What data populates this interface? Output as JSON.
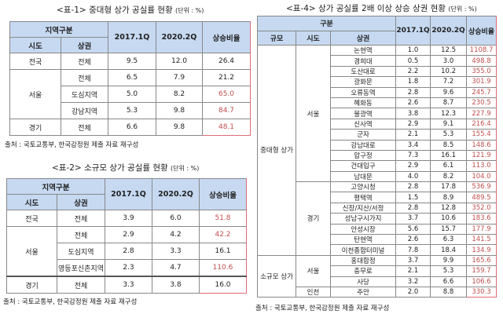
{
  "table1": {
    "title": "<표-1> 중대형 상가 공실률 현황",
    "unit": "(단위 : %)",
    "headers": {
      "group": "지역구분",
      "sido": "시도",
      "area": "상권",
      "c1": "2017.1Q",
      "c2": "2020.2Q",
      "c3": "상승비율"
    },
    "rows": [
      {
        "sido": "전국",
        "area": "전체",
        "v1": "9.5",
        "v2": "12.0",
        "rate": "26.4",
        "highlight": false
      },
      {
        "sido": "서울",
        "area": "전체",
        "v1": "6.5",
        "v2": "7.9",
        "rate": "21.2",
        "highlight": false
      },
      {
        "sido": "서울",
        "area": "도심지역",
        "v1": "5.0",
        "v2": "8.2",
        "rate": "65.0",
        "highlight": true
      },
      {
        "sido": "서울",
        "area": "강남지역",
        "v1": "5.3",
        "v2": "9.8",
        "rate": "84.7",
        "highlight": true
      },
      {
        "sido": "경기",
        "area": "전체",
        "v1": "6.6",
        "v2": "9.8",
        "rate": "48.1",
        "highlight": true
      }
    ],
    "source": "출처 : 국토교통부, 한국감정원 제출 자료 재구성"
  },
  "table2": {
    "title": "<표-2> 소규모 상가 공실률 현황",
    "unit": "(단위 : %)",
    "headers": {
      "group": "지역구분",
      "sido": "시도",
      "area": "상권",
      "c1": "2017.1Q",
      "c2": "2020.2Q",
      "c3": "상승비율"
    },
    "rows": [
      {
        "sido": "전국",
        "area": "전체",
        "v1": "3.9",
        "v2": "6.0",
        "rate": "51.8",
        "highlight": true
      },
      {
        "sido": "서울",
        "area": "전체",
        "v1": "2.9",
        "v2": "4.2",
        "rate": "42.2",
        "highlight": true
      },
      {
        "sido": "서울",
        "area": "도심지역",
        "v1": "2.8",
        "v2": "3.3",
        "rate": "16.1",
        "highlight": false
      },
      {
        "sido": "서울",
        "area": "영등포신촌지역",
        "v1": "2.3",
        "v2": "4.7",
        "rate": "110.6",
        "highlight": true
      },
      {
        "sido": "경기",
        "area": "전체",
        "v1": "3.3",
        "v2": "3.8",
        "rate": "16.0",
        "highlight": false
      }
    ],
    "source": "출처 : 국토교통부, 한국감정원 제출 자료 재구성"
  },
  "table4": {
    "title": "<표-4> 상가 공실률 2배 이상 상승 상권 현황",
    "unit": "(단위 : %)",
    "headers": {
      "group": "구분",
      "scale": "규모",
      "sido": "시도",
      "area": "상권",
      "c1": "2017.1Q",
      "c2": "2020.2Q",
      "c3": "상승비율"
    },
    "rows": [
      {
        "scale": "중대형 상가",
        "sido": "서울",
        "area": "논현역",
        "v1": "1.0",
        "v2": "12.5",
        "rate": "1108.7"
      },
      {
        "scale": "중대형 상가",
        "sido": "서울",
        "area": "경희대",
        "v1": "0.5",
        "v2": "3.0",
        "rate": "498.8"
      },
      {
        "scale": "중대형 상가",
        "sido": "서울",
        "area": "도산대로",
        "v1": "2.2",
        "v2": "10.2",
        "rate": "355.0"
      },
      {
        "scale": "중대형 상가",
        "sido": "서울",
        "area": "광화문",
        "v1": "1.8",
        "v2": "7.2",
        "rate": "301.9"
      },
      {
        "scale": "중대형 상가",
        "sido": "서울",
        "area": "오류동역",
        "v1": "2.8",
        "v2": "9.6",
        "rate": "245.7"
      },
      {
        "scale": "중대형 상가",
        "sido": "서울",
        "area": "혜화동",
        "v1": "2.6",
        "v2": "8.7",
        "rate": "230.5"
      },
      {
        "scale": "중대형 상가",
        "sido": "서울",
        "area": "불광역",
        "v1": "3.8",
        "v2": "12.3",
        "rate": "227.9"
      },
      {
        "scale": "중대형 상가",
        "sido": "서울",
        "area": "신사역",
        "v1": "2.9",
        "v2": "9.1",
        "rate": "216.4"
      },
      {
        "scale": "중대형 상가",
        "sido": "서울",
        "area": "군자",
        "v1": "2.1",
        "v2": "5.3",
        "rate": "155.4"
      },
      {
        "scale": "중대형 상가",
        "sido": "서울",
        "area": "강남대로",
        "v1": "3.4",
        "v2": "8.5",
        "rate": "148.6"
      },
      {
        "scale": "중대형 상가",
        "sido": "서울",
        "area": "압구정",
        "v1": "7.3",
        "v2": "16.1",
        "rate": "121.9"
      },
      {
        "scale": "중대형 상가",
        "sido": "서울",
        "area": "건대입구",
        "v1": "2.9",
        "v2": "6.1",
        "rate": "113.0"
      },
      {
        "scale": "중대형 상가",
        "sido": "서울",
        "area": "남대문",
        "v1": "4.0",
        "v2": "8.2",
        "rate": "104.0"
      },
      {
        "scale": "중대형 상가",
        "sido": "경기",
        "area": "고양시청",
        "v1": "2.8",
        "v2": "17.8",
        "rate": "536.9"
      },
      {
        "scale": "중대형 상가",
        "sido": "경기",
        "area": "평택역",
        "v1": "1.5",
        "v2": "8.9",
        "rate": "489.5"
      },
      {
        "scale": "중대형 상가",
        "sido": "경기",
        "area": "신장/지산/서정",
        "v1": "2.8",
        "v2": "12.8",
        "rate": "352.0"
      },
      {
        "scale": "중대형 상가",
        "sido": "경기",
        "area": "성남구시가지",
        "v1": "3.7",
        "v2": "10.6",
        "rate": "183.6"
      },
      {
        "scale": "중대형 상가",
        "sido": "경기",
        "area": "안성시장",
        "v1": "5.6",
        "v2": "15.7",
        "rate": "177.9"
      },
      {
        "scale": "중대형 상가",
        "sido": "경기",
        "area": "탄현역",
        "v1": "2.6",
        "v2": "6.3",
        "rate": "141.5"
      },
      {
        "scale": "중대형 상가",
        "sido": "경기",
        "area": "이천종합터미널",
        "v1": "7.8",
        "v2": "18.4",
        "rate": "134.9"
      },
      {
        "scale": "소규모 상가",
        "sido": "서울",
        "area": "홍대합정",
        "v1": "3.7",
        "v2": "9.9",
        "rate": "165.6"
      },
      {
        "scale": "소규모 상가",
        "sido": "서울",
        "area": "충무로",
        "v1": "2.1",
        "v2": "5.3",
        "rate": "159.7"
      },
      {
        "scale": "소규모 상가",
        "sido": "서울",
        "area": "사당",
        "v1": "3.2",
        "v2": "6.6",
        "rate": "106.6"
      },
      {
        "scale": "소규모 상가",
        "sido": "인천",
        "area": "주안",
        "v1": "2.0",
        "v2": "8.8",
        "rate": "330.3"
      }
    ],
    "source": "출처 : 국토교통부, 한국감정원 제출 자료 재구성"
  },
  "colors": {
    "header_bg": "#c6d9f1",
    "highlight_text": "#c0504d",
    "highlight_border": "#e06a78"
  }
}
